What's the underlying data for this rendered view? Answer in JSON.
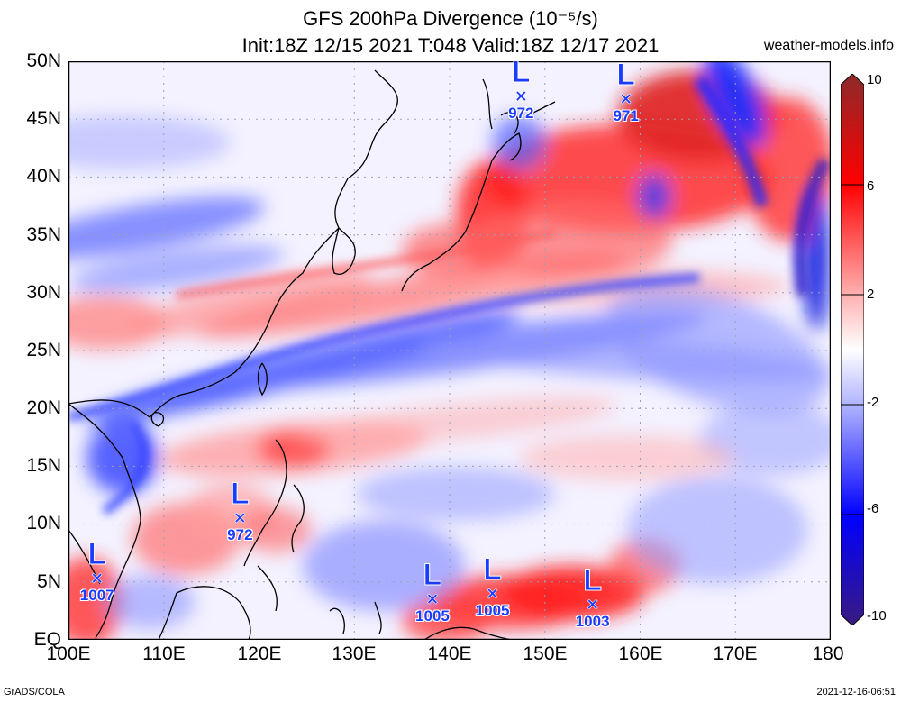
{
  "title": {
    "line1": "GFS 200hPa Divergence (10⁻⁵/s)",
    "line2": "Init:18Z 12/15 2021 T:048 Valid:18Z 12/17 2021"
  },
  "site": "weather-models.info",
  "footer": {
    "left": "GrADS/COLA",
    "right": "2021-12-16-06:51"
  },
  "lat_labels": [
    "50N",
    "45N",
    "40N",
    "35N",
    "30N",
    "25N",
    "20N",
    "15N",
    "10N",
    "5N",
    "EQ"
  ],
  "lon_labels": [
    "100E",
    "110E",
    "120E",
    "130E",
    "140E",
    "150E",
    "160E",
    "170E",
    "180"
  ],
  "colorbar": {
    "ticks": [
      "10",
      "6",
      "2",
      "-2",
      "-6",
      "-10"
    ],
    "colors": [
      "#8c2a2a",
      "#ff0000",
      "#ffb0b0",
      "#ffffff",
      "#b0b4ff",
      "#0000ff",
      "#3a1a80"
    ]
  },
  "lows": [
    {
      "label": "L",
      "mark": "×",
      "pressure": "972",
      "lon": 147.5,
      "lat": 47.0
    },
    {
      "label": "L",
      "mark": "×",
      "pressure": "971",
      "lon": 158.5,
      "lat": 46.7
    },
    {
      "label": "L",
      "mark": "×",
      "pressure": "972",
      "lon": 118.0,
      "lat": 10.5
    },
    {
      "label": "L",
      "mark": "×",
      "pressure": "1007",
      "lon": 103.0,
      "lat": 5.3
    },
    {
      "label": "L",
      "mark": "×",
      "pressure": "1005",
      "lon": 138.2,
      "lat": 3.5
    },
    {
      "label": "L",
      "mark": "×",
      "pressure": "1005",
      "lon": 144.5,
      "lat": 4.0
    },
    {
      "label": "L",
      "mark": "×",
      "pressure": "1003",
      "lon": 155.0,
      "lat": 3.0
    }
  ]
}
